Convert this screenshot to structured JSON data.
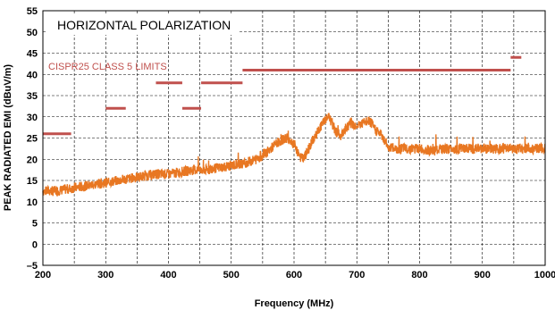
{
  "chart_data": {
    "type": "line",
    "title": "HORIZONTAL POLARIZATION",
    "xlabel": "Frequency (MHz)",
    "ylabel": "PEAK RADIATED EMI (dBuV/m)",
    "xlim": [
      200,
      1000
    ],
    "ylim": [
      -5,
      55
    ],
    "x_ticks": [
      200,
      300,
      400,
      500,
      600,
      700,
      800,
      900,
      1000
    ],
    "y_ticks": [
      -5,
      0,
      5,
      10,
      15,
      20,
      25,
      30,
      35,
      40,
      45,
      50,
      55
    ],
    "grid": true,
    "limit_label": "CISPR25 CLASS 5 LIMITS",
    "colors": {
      "emission": "#E87722",
      "limit": "#C0504D"
    },
    "limits": [
      {
        "x": [
          200,
          245
        ],
        "y": 26
      },
      {
        "x": [
          300,
          332
        ],
        "y": 32
      },
      {
        "x": [
          380,
          422
        ],
        "y": 38
      },
      {
        "x": [
          422,
          452
        ],
        "y": 32
      },
      {
        "x": [
          452,
          518
        ],
        "y": 38
      },
      {
        "x": [
          518,
          945
        ],
        "y": 41
      },
      {
        "x": [
          945,
          962
        ],
        "y": 44
      }
    ],
    "series": [
      {
        "x": [
          200,
          220,
          240,
          260,
          280,
          300,
          320,
          340,
          360,
          380,
          400,
          420,
          440,
          460,
          480,
          500,
          520,
          540,
          560,
          570,
          580,
          590,
          600,
          610,
          615,
          620,
          630,
          640,
          650,
          655,
          660,
          665,
          670,
          675,
          680,
          690,
          700,
          710,
          720,
          730,
          740,
          750,
          760,
          780,
          800,
          820,
          850,
          880,
          900,
          920,
          940,
          960,
          980,
          1000
        ],
        "y": [
          12.5,
          12.5,
          13,
          13.5,
          14,
          14.5,
          15,
          15.5,
          16,
          16.5,
          16.5,
          17,
          17.5,
          17.5,
          18,
          18.5,
          19,
          20,
          22,
          23.5,
          24.5,
          25,
          23.5,
          20.5,
          20,
          21.5,
          24.5,
          27,
          29.5,
          30,
          28.5,
          27,
          26,
          25.5,
          27,
          28.5,
          28,
          28.5,
          29,
          27,
          25.5,
          23,
          22.5,
          22.5,
          22.5,
          22,
          22.5,
          22.5,
          22.5,
          22.5,
          22.5,
          22.5,
          22.5,
          22.5
        ],
        "noise": 1.2
      }
    ]
  }
}
